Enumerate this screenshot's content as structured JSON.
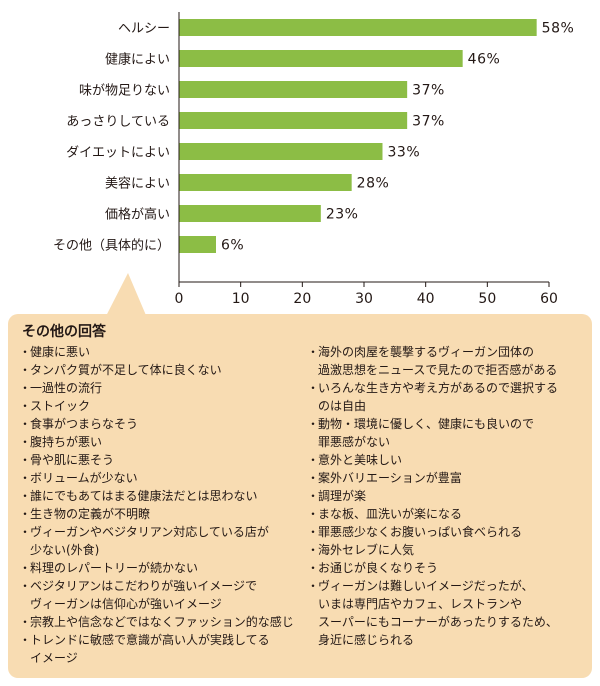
{
  "chart_data": {
    "type": "bar",
    "orientation": "horizontal",
    "categories": [
      "ヘルシー",
      "健康によい",
      "味が物足りない",
      "あっさりしている",
      "ダイエットによい",
      "美容によい",
      "価格が高い",
      "その他（具体的に）"
    ],
    "values": [
      58,
      46,
      37,
      37,
      33,
      28,
      23,
      6
    ],
    "value_labels": [
      "58%",
      "46%",
      "37%",
      "37%",
      "33%",
      "28%",
      "23%",
      "6%"
    ],
    "xticks": [
      "0",
      "10",
      "20",
      "30",
      "40",
      "50",
      "60"
    ],
    "xlim": [
      0,
      60
    ],
    "grid": false,
    "colors": {
      "bar": "#8cbd45",
      "axis": "#231815"
    }
  },
  "other_answers": {
    "title": "その他の回答",
    "bullet": "・",
    "box_color": "#f8dcb2",
    "left": [
      "健康に悪い",
      "タンパク質が不足して体に良くない",
      "一過性の流行",
      "ストイック",
      "食事がつまらなそう",
      "腹持ちが悪い",
      "骨や肌に悪そう",
      "ボリュームが少ない",
      "誰にでもあてはまる健康法だとは思わない",
      "生き物の定義が不明瞭",
      "ヴィーガンやベジタリアン対応している店が\n少ない(外食)",
      "料理のレパートリーが続かない",
      "ベジタリアンはこだわりが強いイメージで\nヴィーガンは信仰心が強いイメージ",
      "宗教上や信念などではなくファッション的な感じ",
      "トレンドに敏感で意識が高い人が実践してる\nイメージ"
    ],
    "right": [
      "海外の肉屋を襲撃するヴィーガン団体の\n過激思想をニュースで見たので拒否感がある",
      "いろんな生き方や考え方があるので選択する\nのは自由",
      "動物・環境に優しく、健康にも良いので\n罪悪感がない",
      "意外と美味しい",
      "案外バリエーションが豊富",
      "調理が楽",
      "まな板、皿洗いが楽になる",
      "罪悪感少なくお腹いっぱい食べられる",
      "海外セレブに人気",
      "お通じが良くなりそう",
      "ヴィーガンは難しいイメージだったが、\nいまは専門店やカフェ、レストランや\nスーパーにもコーナーがあったりするため、\n身近に感じられる"
    ]
  }
}
